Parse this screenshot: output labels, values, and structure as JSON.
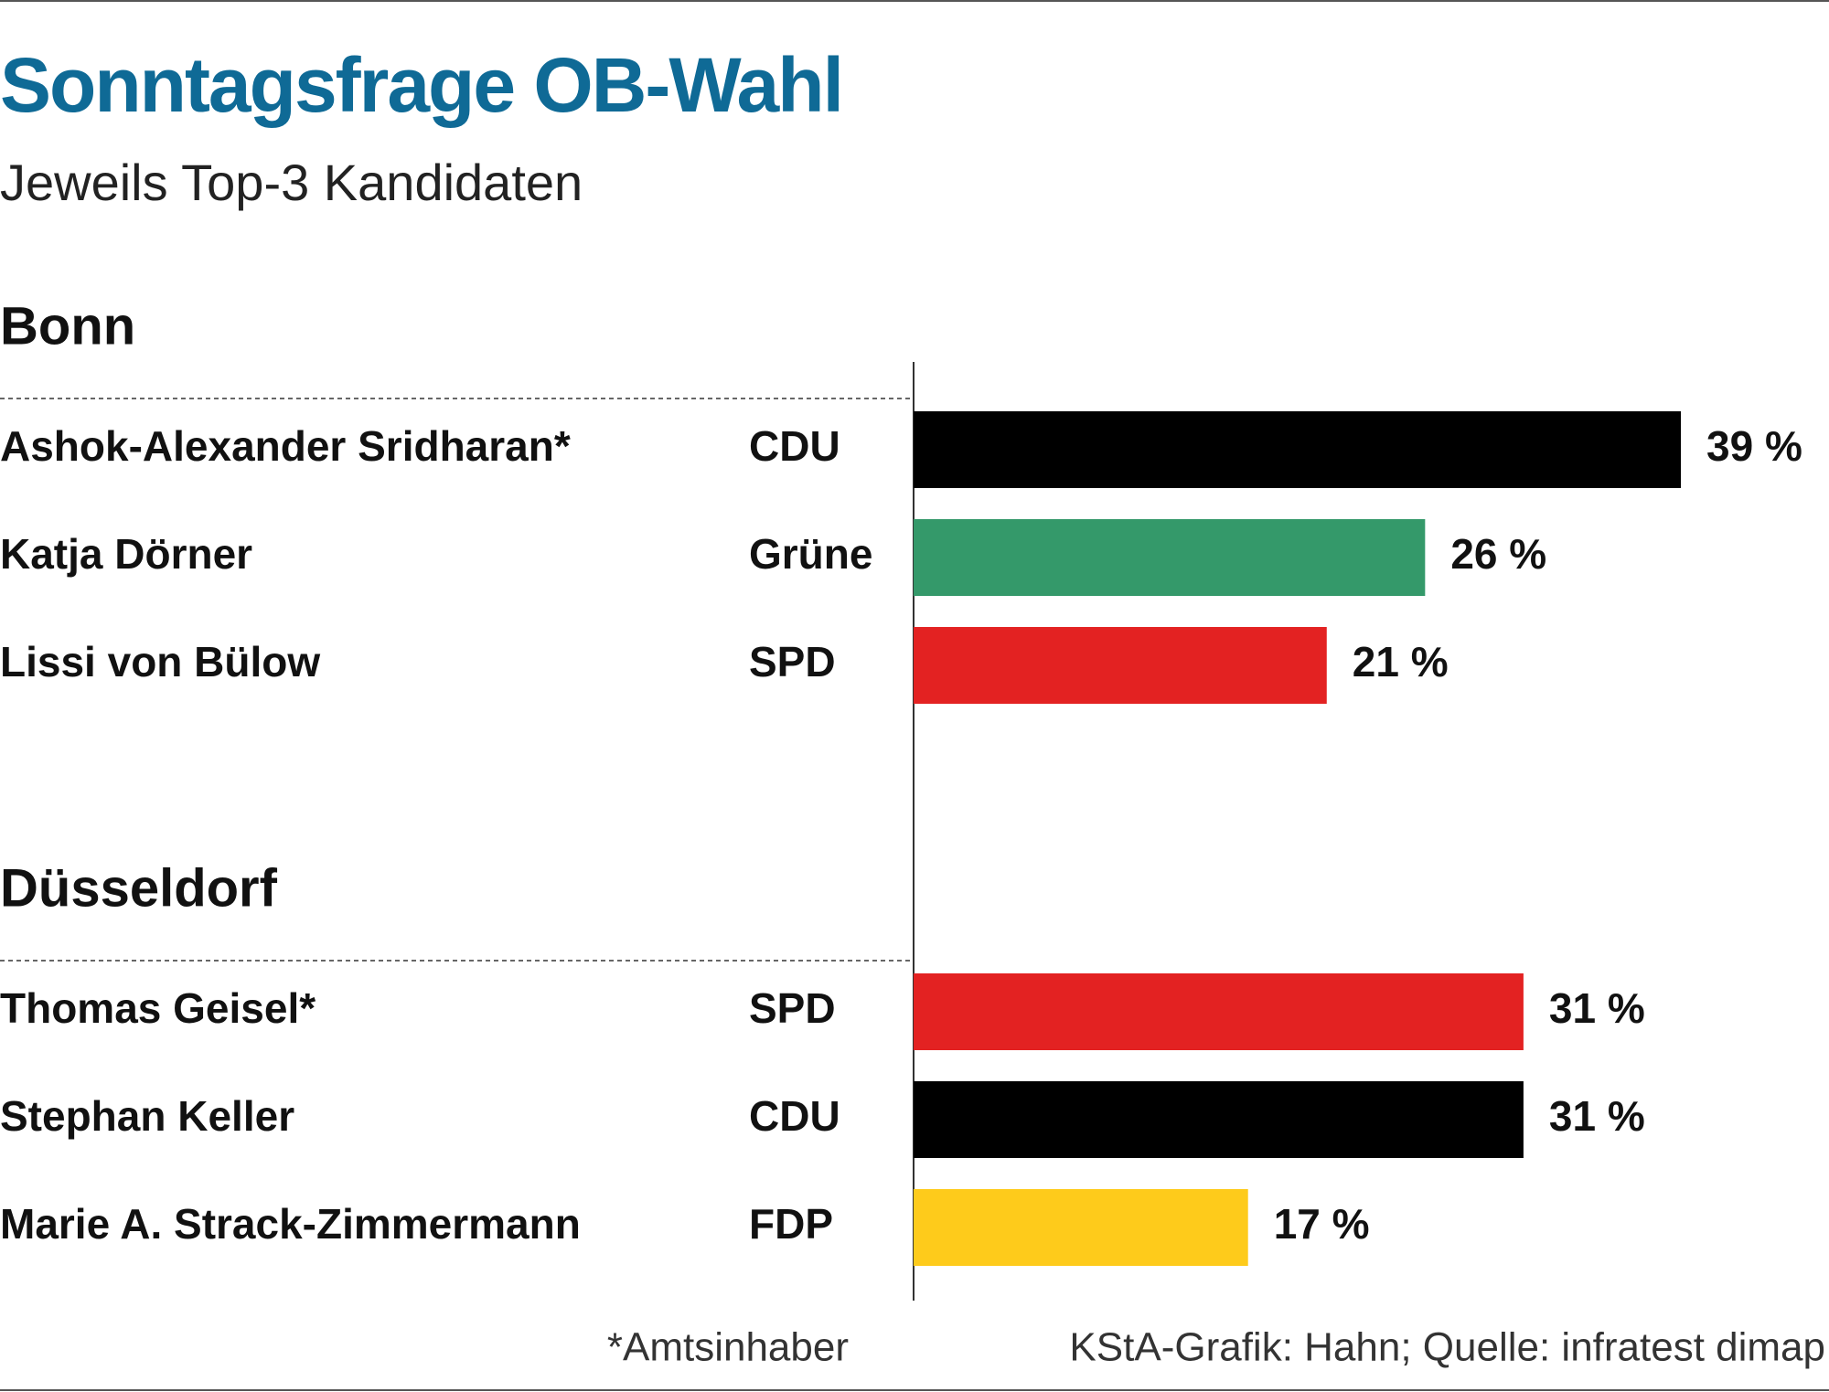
{
  "title": "Sonntagsfrage OB-Wahl",
  "subtitle": "Jeweils Top-3 Kandidaten",
  "footnote": "*Amtsinhaber",
  "source": "KStA-Grafik: Hahn; Quelle: infratest dimap",
  "chart_data": [
    {
      "type": "bar",
      "title": "Bonn",
      "categories": [
        "Ashok-Alexander Sridharan*",
        "Katja Dörner",
        "Lissi von Bülow"
      ],
      "parties": [
        "CDU",
        "Grüne",
        "SPD"
      ],
      "values": [
        39,
        26,
        21
      ],
      "value_labels": [
        "39 %",
        "26 %",
        "21 %"
      ],
      "colors": [
        "#000000",
        "#34996a",
        "#e32222"
      ]
    },
    {
      "type": "bar",
      "title": "Düsseldorf",
      "categories": [
        "Thomas Geisel*",
        "Stephan Keller",
        "Marie A. Strack-Zimmermann"
      ],
      "parties": [
        "SPD",
        "CDU",
        "FDP"
      ],
      "values": [
        31,
        31,
        17
      ],
      "value_labels": [
        "31 %",
        "31 %",
        "17 %"
      ],
      "colors": [
        "#e32222",
        "#000000",
        "#fecb1b"
      ]
    }
  ]
}
